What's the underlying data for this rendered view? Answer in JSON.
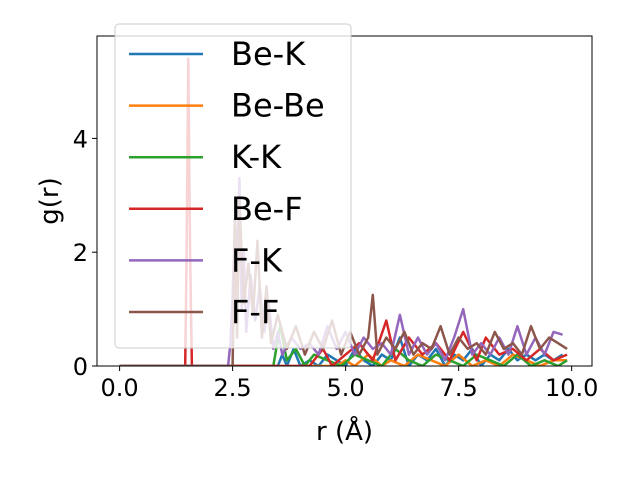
{
  "chart_data": {
    "type": "line",
    "title": "",
    "xlabel": "r (Å)",
    "ylabel": "g(r)",
    "xlim": [
      -0.5,
      10.45
    ],
    "ylim": [
      0,
      5.8
    ],
    "xticks": [
      "0.0",
      "2.5",
      "5.0",
      "7.5",
      "10.0"
    ],
    "yticks": [
      "0",
      "2",
      "4"
    ],
    "grid": false,
    "legend_location": "upper-left",
    "series": [
      {
        "name": "Be-K",
        "color": "#1f77b4",
        "x": [
          0,
          2.0,
          3.5,
          3.6,
          3.7,
          3.85,
          4.0,
          4.2,
          4.4,
          4.6,
          4.8,
          5.0,
          5.2,
          5.4,
          5.6,
          5.8,
          6.0,
          6.2,
          6.4,
          6.6,
          6.8,
          7.0,
          7.2,
          7.4,
          7.6,
          7.8,
          8.0,
          8.2,
          8.4,
          8.6,
          8.8,
          9.0,
          9.2,
          9.4,
          9.6,
          9.8
        ],
        "y": [
          0,
          0,
          0,
          0.2,
          0,
          0.3,
          0,
          0.1,
          0,
          0.2,
          0.1,
          0,
          0.3,
          0.1,
          0,
          0.2,
          0.1,
          0.5,
          0,
          0.2,
          0.1,
          0.3,
          0,
          0.2,
          0.1,
          0.3,
          0,
          0.2,
          0.1,
          0.3,
          0.1,
          0.2,
          0.1,
          0.2,
          0.1,
          0.2
        ]
      },
      {
        "name": "Be-Be",
        "color": "#ff7f0e",
        "x": [
          0,
          4.0,
          4.8,
          5.0,
          5.2,
          5.5,
          5.8,
          6.0,
          6.3,
          6.6,
          6.9,
          7.2,
          7.5,
          7.8,
          8.1,
          8.4,
          8.7,
          9.0,
          9.3,
          9.6,
          9.9
        ],
        "y": [
          0,
          0,
          0,
          0.1,
          0,
          0.2,
          0,
          0.1,
          0,
          0.2,
          0.1,
          0,
          0.2,
          0,
          0.1,
          0,
          0.2,
          0.1,
          0,
          0.1,
          0.1
        ]
      },
      {
        "name": "K-K",
        "color": "#2ca02c",
        "x": [
          0,
          3.4,
          3.55,
          3.7,
          3.9,
          4.1,
          4.3,
          4.6,
          4.9,
          5.2,
          5.5,
          5.8,
          6.1,
          6.4,
          6.7,
          7.0,
          7.3,
          7.6,
          7.9,
          8.2,
          8.5,
          8.8,
          9.1,
          9.4,
          9.7,
          9.9
        ],
        "y": [
          0,
          0,
          0.7,
          0.1,
          0.3,
          0,
          0.2,
          0.1,
          0,
          0.2,
          0.1,
          0,
          0.3,
          0.1,
          0,
          0.2,
          0.1,
          0,
          0.2,
          0.1,
          0,
          0.2,
          0,
          0.1,
          0,
          0.1
        ]
      },
      {
        "name": "Be-F",
        "color": "#d62728",
        "x": [
          0,
          1.45,
          1.48,
          1.52,
          1.56,
          1.6,
          2.5,
          3.5,
          4.2,
          4.5,
          4.7,
          5.0,
          5.3,
          5.6,
          5.9,
          6.1,
          6.4,
          6.7,
          7.0,
          7.3,
          7.6,
          7.9,
          8.1,
          8.4,
          8.7,
          9.0,
          9.3,
          9.6,
          9.9
        ],
        "y": [
          0,
          0,
          1.8,
          5.4,
          2.0,
          0,
          0,
          0,
          0,
          0.3,
          0,
          0.2,
          0.4,
          0.1,
          0.8,
          0.1,
          0.5,
          0.2,
          0.4,
          0.1,
          0.6,
          0.1,
          0.5,
          0.2,
          0.3,
          0.1,
          0.3,
          0.1,
          0.2
        ]
      },
      {
        "name": "F-K",
        "color": "#9467bd",
        "x": [
          0,
          2.4,
          2.45,
          2.5,
          2.55,
          2.6,
          2.65,
          2.7,
          2.75,
          2.8,
          2.9,
          3.0,
          3.1,
          3.2,
          3.3,
          3.4,
          3.5,
          3.6,
          3.8,
          4.0,
          4.2,
          4.4,
          4.6,
          4.8,
          5.0,
          5.2,
          5.4,
          5.6,
          5.8,
          6.0,
          6.2,
          6.4,
          6.6,
          6.8,
          7.0,
          7.2,
          7.4,
          7.6,
          7.8,
          8.0,
          8.2,
          8.4,
          8.6,
          8.8,
          9.0,
          9.2,
          9.4,
          9.6,
          9.8
        ],
        "y": [
          0,
          0,
          0.4,
          1.2,
          2.6,
          1.8,
          3.3,
          1.0,
          2.0,
          0.6,
          1.6,
          0.8,
          1.4,
          0.6,
          1.1,
          0.3,
          0.6,
          0.2,
          0.5,
          0.3,
          0.4,
          0.2,
          0.7,
          0.3,
          0.6,
          0.2,
          0.5,
          0.3,
          0.4,
          0.2,
          0.9,
          0.2,
          0.5,
          0.2,
          0.4,
          0.1,
          0.5,
          1.0,
          0.2,
          0.4,
          0.2,
          0.5,
          0.2,
          0.7,
          0.2,
          0.5,
          0.2,
          0.6,
          0.55
        ]
      },
      {
        "name": "F-F",
        "color": "#8c564b",
        "x": [
          0,
          2.5,
          2.55,
          2.6,
          2.65,
          2.75,
          2.85,
          2.95,
          3.05,
          3.15,
          3.25,
          3.35,
          3.5,
          3.7,
          3.9,
          4.1,
          4.3,
          4.5,
          4.7,
          4.9,
          5.1,
          5.3,
          5.5,
          5.6,
          5.7,
          5.9,
          6.1,
          6.3,
          6.5,
          6.7,
          6.9,
          7.1,
          7.3,
          7.5,
          7.7,
          7.9,
          8.1,
          8.3,
          8.5,
          8.7,
          8.9,
          9.1,
          9.3,
          9.5,
          9.7,
          9.9
        ],
        "y": [
          0,
          0,
          2.6,
          0.5,
          2.9,
          1.1,
          1.8,
          0.9,
          2.2,
          0.5,
          1.4,
          0.4,
          0.9,
          0.3,
          0.7,
          0.2,
          0.6,
          0.3,
          0.8,
          0.2,
          0.6,
          0.2,
          0.5,
          1.25,
          0.2,
          0.5,
          0.3,
          0.6,
          0.2,
          0.4,
          0.3,
          0.7,
          0.2,
          0.5,
          0.3,
          0.4,
          0.2,
          0.6,
          0.3,
          0.4,
          0.2,
          0.7,
          0.3,
          0.5,
          0.4,
          0.3
        ]
      }
    ]
  }
}
